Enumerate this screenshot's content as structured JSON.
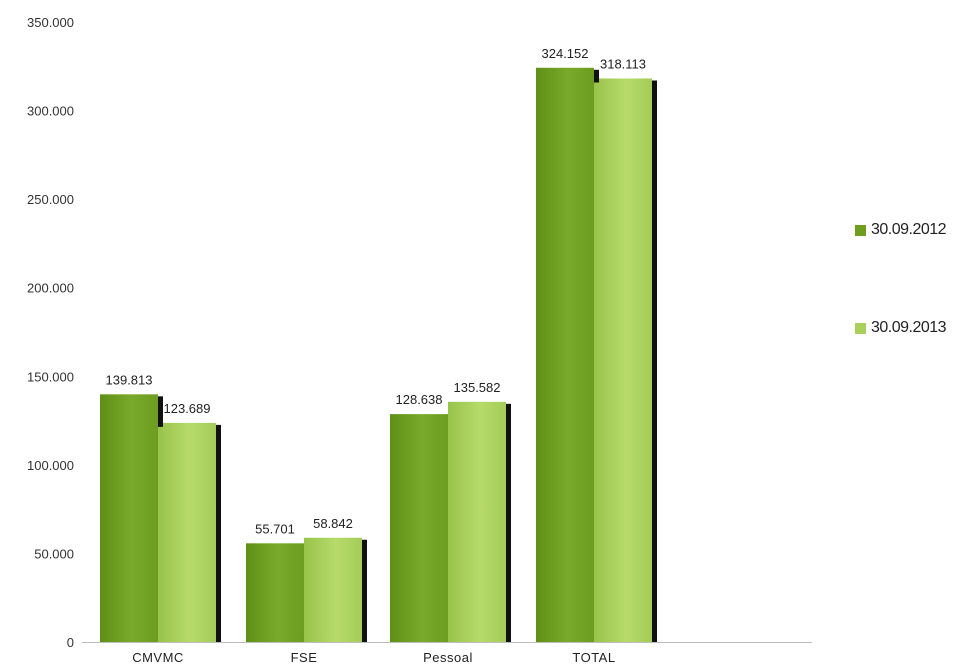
{
  "chart_data": {
    "type": "bar",
    "categories": [
      "CMVMC",
      "FSE",
      "Pessoal",
      "TOTAL"
    ],
    "series": [
      {
        "name": "30.09.2012",
        "color": "#6f9e1f",
        "values": [
          139813,
          55701,
          128638,
          324152
        ],
        "labels": [
          "139.813",
          "55.701",
          "128.638",
          "324.152"
        ]
      },
      {
        "name": "30.09.2013",
        "color": "#a9d05a",
        "values": [
          123689,
          58842,
          135582,
          318113
        ],
        "labels": [
          "123.689",
          "58.842",
          "135.582",
          "318.113"
        ]
      }
    ],
    "ylim": [
      0,
      350000
    ],
    "yticks": [
      {
        "value": 0,
        "label": "0"
      },
      {
        "value": 50000,
        "label": "50.000"
      },
      {
        "value": 100000,
        "label": "100.000"
      },
      {
        "value": 150000,
        "label": "150.000"
      },
      {
        "value": 200000,
        "label": "200.000"
      },
      {
        "value": 250000,
        "label": "250.000"
      },
      {
        "value": 300000,
        "label": "300.000"
      },
      {
        "value": 350000,
        "label": "350.000"
      }
    ],
    "legend_position": "right",
    "grid": false
  }
}
